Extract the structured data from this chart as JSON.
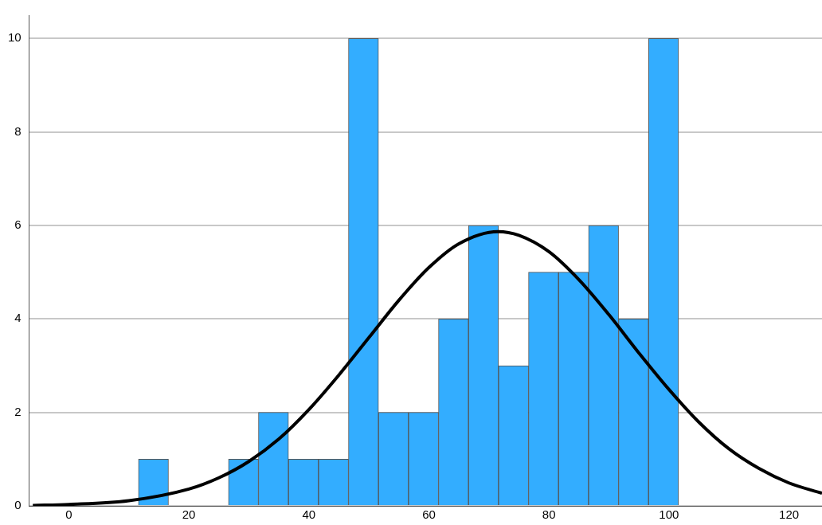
{
  "chart_data": {
    "type": "histogram",
    "bins": [
      11.6,
      16.6,
      21.6,
      26.6,
      31.6,
      36.6,
      41.6,
      46.6,
      51.6,
      56.6,
      61.6,
      66.6,
      71.6,
      76.6,
      81.6,
      86.6,
      91.6,
      96.6,
      101.6
    ],
    "values": [
      1,
      0,
      0,
      1,
      2,
      1,
      1,
      10,
      2,
      2,
      4,
      6,
      3,
      5,
      5,
      6,
      4,
      10
    ],
    "color": "#33adff",
    "series": [
      {
        "type": "line",
        "color": "#000000",
        "x": [
          -6,
          0,
          10,
          20,
          25,
          30,
          35,
          40,
          45,
          50,
          55,
          60,
          65,
          71.5,
          75,
          80,
          85,
          90,
          95,
          100,
          105,
          110,
          115,
          120,
          125.5
        ],
        "values": [
          0.01,
          0.03,
          0.11,
          0.36,
          0.6,
          0.95,
          1.43,
          2.06,
          2.8,
          3.6,
          4.4,
          5.1,
          5.61,
          5.87,
          5.79,
          5.44,
          4.84,
          4.09,
          3.27,
          2.49,
          1.79,
          1.22,
          0.8,
          0.49,
          0.27
        ]
      }
    ],
    "xlim": [
      -6.6,
      125.5
    ],
    "xticks": [
      0,
      20,
      40,
      60,
      80,
      100,
      120
    ],
    "ylim": [
      0,
      10.5
    ],
    "yticks": [
      0,
      2,
      4,
      6,
      8,
      10
    ],
    "grid": "y",
    "legend": false,
    "marker": "none",
    "line_style": "solid"
  }
}
